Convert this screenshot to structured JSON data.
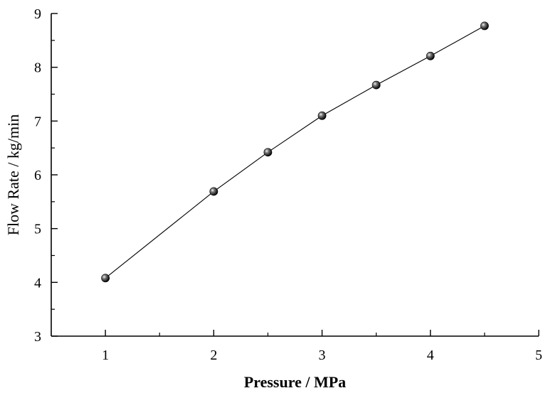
{
  "chart_data": {
    "type": "line",
    "title": "",
    "xlabel": "Pressure / MPa",
    "ylabel": "Flow Rate / kg/min",
    "xlim": [
      0.5,
      5
    ],
    "ylim": [
      3,
      9
    ],
    "x_ticks": [
      1,
      2,
      3,
      4,
      5
    ],
    "y_ticks": [
      3,
      4,
      5,
      6,
      7,
      8,
      9
    ],
    "x_tick_labels": [
      "1",
      "2",
      "3",
      "4",
      "5"
    ],
    "y_tick_labels": [
      "3",
      "4",
      "5",
      "6",
      "7",
      "8",
      "9"
    ],
    "grid": false,
    "legend": "none",
    "series": [
      {
        "x": [
          1,
          2,
          2.5,
          3,
          3.5,
          4,
          4.5
        ],
        "y": [
          4.08,
          5.69,
          6.42,
          7.1,
          7.67,
          8.21,
          8.77
        ],
        "marker": "sphere",
        "line_color": "#000000",
        "marker_color": "#1a1a1a"
      }
    ]
  }
}
